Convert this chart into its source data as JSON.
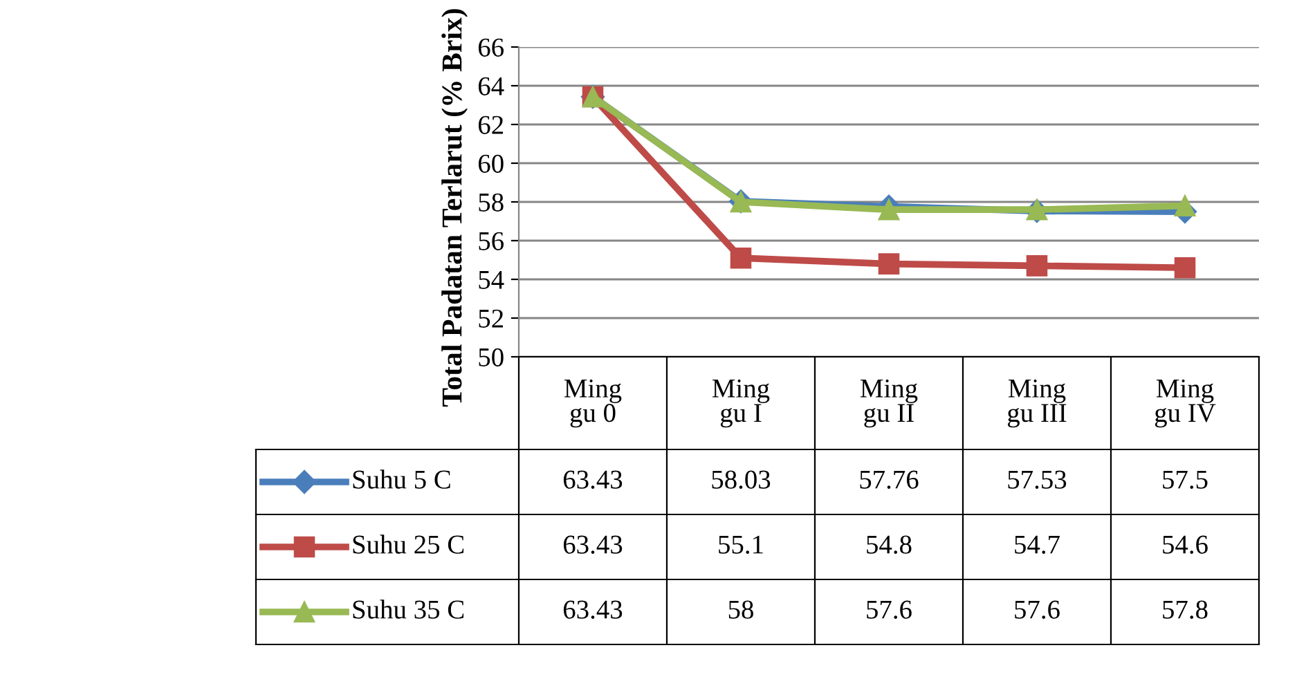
{
  "chart_data": {
    "type": "line",
    "ylabel": "Total Padatan Terlarut (% Brix)",
    "categories": [
      "Ming\ngu 0",
      "Ming\ngu I",
      "Ming\ngu II",
      "Ming\ngu III",
      "Ming\ngu IV"
    ],
    "series": [
      {
        "name": "Suhu 5 C",
        "color": "#4a7ebb",
        "marker": "diamond",
        "values": [
          63.43,
          58.03,
          57.76,
          57.53,
          57.5
        ]
      },
      {
        "name": "Suhu 25 C",
        "color": "#be4b48",
        "marker": "square",
        "values": [
          63.43,
          55.1,
          54.8,
          54.7,
          54.6
        ]
      },
      {
        "name": "Suhu 35 C",
        "color": "#98b954",
        "marker": "triangle",
        "values": [
          63.43,
          58,
          57.6,
          57.6,
          57.8
        ]
      }
    ],
    "ylim": [
      50,
      66
    ],
    "yticks": [
      50,
      52,
      54,
      56,
      58,
      60,
      62,
      64,
      66
    ],
    "grid": "y",
    "legend": "bottom",
    "data_labels": true,
    "line_style": "solid"
  }
}
